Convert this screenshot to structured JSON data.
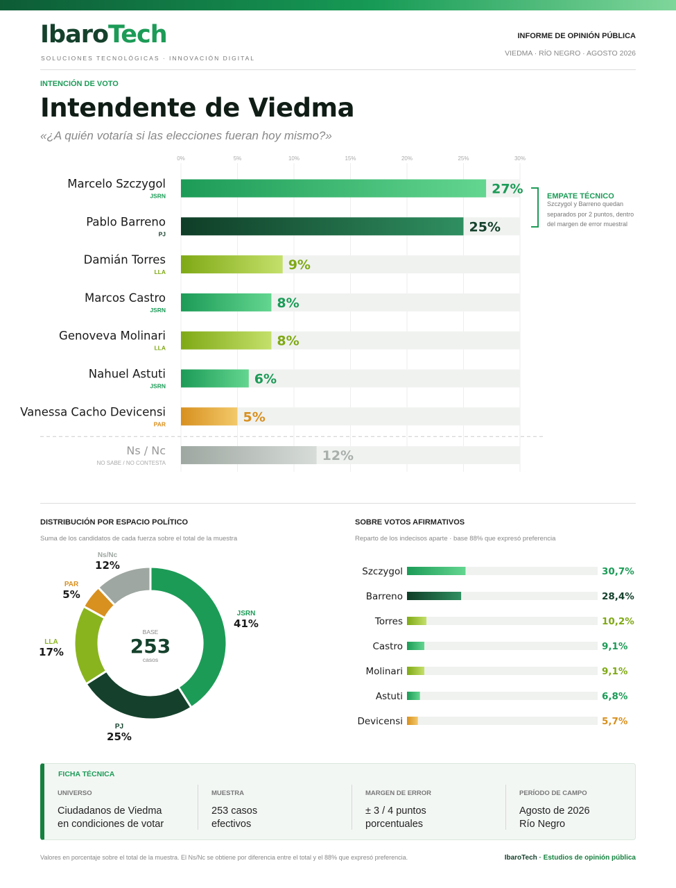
{
  "brand": {
    "name_part1": "Ibaro",
    "name_part2": "Tech",
    "tagline": "SOLUCIONES TECNOLÓGICAS · INNOVACIÓN DIGITAL",
    "colors": {
      "dark": "#15412c",
      "green": "#1c9b57",
      "lime": "#8ab41e",
      "orange": "#e0a43a",
      "grey": "#b9c3bd"
    }
  },
  "report": {
    "title": "INFORME DE OPINIÓN PÚBLICA",
    "subtitle": "VIEDMA · RÍO NEGRO · AGOSTO 2026"
  },
  "section": {
    "kicker": "INTENCIÓN DE VOTO",
    "title": "Intendente de Viedma",
    "question": "«¿A quién votaría si las elecciones fueran hoy mismo?»"
  },
  "note": {
    "title": "EMPATE TÉCNICO",
    "body": "Szczygol y Barreno quedan separados por 2 puntos, dentro del margen de error muestral"
  },
  "chart_data": [
    {
      "type": "bar",
      "orientation": "horizontal",
      "title": "Intendente de Viedma",
      "xlim": [
        0,
        30
      ],
      "x_ticks": [
        "0%",
        "5%",
        "10%",
        "15%",
        "20%",
        "25%",
        "30%"
      ],
      "grid": true,
      "bars": [
        {
          "name": "Marcelo Szczygol",
          "party": "JSRN",
          "value": 27,
          "label": "27%",
          "color": "green"
        },
        {
          "name": "Pablo Barreno",
          "party": "PJ",
          "value": 25,
          "label": "25%",
          "color": "dark"
        },
        {
          "name": "Damián Torres",
          "party": "LLA",
          "value": 9,
          "label": "9%",
          "color": "lime"
        },
        {
          "name": "Marcos Castro",
          "party": "JSRN",
          "value": 8,
          "label": "8%",
          "color": "green"
        },
        {
          "name": "Genoveva Molinari",
          "party": "LLA",
          "value": 8,
          "label": "8%",
          "color": "lime"
        },
        {
          "name": "Nahuel Astuti",
          "party": "JSRN",
          "value": 6,
          "label": "6%",
          "color": "green"
        },
        {
          "name": "Vanessa Cacho Devicensi",
          "party": "PAR",
          "value": 5,
          "label": "5%",
          "color": "orange"
        },
        {
          "name": "Ns / Nc",
          "party": "NO SABE / NO CONTESTA",
          "value": 12,
          "label": "12%",
          "color": "grey"
        }
      ]
    },
    {
      "type": "pie",
      "title": "DISTRIBUCIÓN POR ESPACIO POLÍTICO",
      "subtitle": "Suma de los candidatos de cada fuerza sobre el total de la muestra",
      "center_label": "BASE",
      "center_value": "253",
      "center_unit": "casos",
      "slices": [
        {
          "name": "JSRN",
          "value": 41,
          "label": "41%",
          "color": "#1c9b57"
        },
        {
          "name": "PJ",
          "value": 25,
          "label": "25%",
          "color": "#15412c"
        },
        {
          "name": "LLA",
          "value": 17,
          "label": "17%",
          "color": "#8ab41e"
        },
        {
          "name": "PAR",
          "value": 5,
          "label": "5%",
          "color": "#d8901f"
        },
        {
          "name": "Ns/Nc",
          "value": 12,
          "label": "12%",
          "color": "#9ea7a1"
        }
      ]
    },
    {
      "type": "bar",
      "orientation": "horizontal",
      "title": "SOBRE VOTOS AFIRMATIVOS",
      "subtitle": "Reparto de los indecisos aparte · base 88% que expresó preferencia",
      "xlim": [
        0,
        100
      ],
      "bars": [
        {
          "name": "Szczygol",
          "value": 30.7,
          "label": "30,7%",
          "color": "green"
        },
        {
          "name": "Barreno",
          "value": 28.4,
          "label": "28,4%",
          "color": "dark"
        },
        {
          "name": "Torres",
          "value": 10.2,
          "label": "10,2%",
          "color": "lime"
        },
        {
          "name": "Castro",
          "value": 9.1,
          "label": "9,1%",
          "color": "green"
        },
        {
          "name": "Molinari",
          "value": 9.1,
          "label": "9,1%",
          "color": "lime"
        },
        {
          "name": "Astuti",
          "value": 6.8,
          "label": "6,8%",
          "color": "green"
        },
        {
          "name": "Devicensi",
          "value": 5.7,
          "label": "5,7%",
          "color": "orange"
        }
      ]
    }
  ],
  "ficha": {
    "title": "FICHA TÉCNICA",
    "columns": [
      {
        "header": "UNIVERSO",
        "value": "Ciudadanos de Viedma\nen condiciones de votar"
      },
      {
        "header": "MUESTRA",
        "value": "253 casos\nefectivos"
      },
      {
        "header": "MARGEN DE ERROR",
        "value": "± 3 / 4 puntos\nporcentuales"
      },
      {
        "header": "PERÍODO DE CAMPO",
        "value": "Agosto de 2026\nRío Negro"
      }
    ]
  },
  "footer": {
    "note": "Valores en porcentaje sobre el total de la muestra. El Ns/Nc se obtiene por diferencia entre el total y el 88% que expresó preferencia.",
    "brand": "IbaroTech",
    "brand_rest": " · Estudios de opinión pública"
  }
}
